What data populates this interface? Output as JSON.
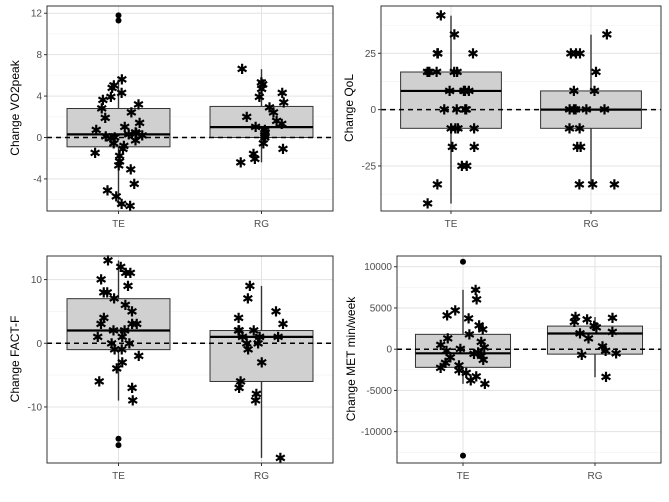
{
  "colors": {
    "panel_background": "#ffffff",
    "grid_major": "#e3e3e3",
    "grid_minor": "#f2f2f2",
    "box_fill": "#d0d0d0",
    "box_stroke": "#333333",
    "point": "#000000",
    "reference_line": "#000000"
  },
  "icons": {
    "point_marker": "asterisk",
    "outlier_marker": "filled-circle"
  },
  "chart_data": [
    {
      "type": "box",
      "ylabel": "Change VO2peak",
      "categories": [
        "TE",
        "RG"
      ],
      "yticks": [
        -4,
        0,
        4,
        8,
        12
      ],
      "ylim": [
        -7.1,
        12.7
      ],
      "reference_line_y": 0,
      "boxes": [
        {
          "category": "TE",
          "whisker_low": -6.6,
          "q1": -0.9,
          "median": 0.3,
          "q3": 2.8,
          "whisker_high": 5.6,
          "outliers": [
            11.3,
            11.8
          ],
          "points": [
            -6.6,
            -6.4,
            -5.7,
            -5.1,
            -4.5,
            -3.1,
            -2.7,
            -2.3,
            -1.8,
            -1.5,
            -1.1,
            -0.8,
            -0.6,
            -0.3,
            -0.1,
            0.0,
            0.1,
            0.2,
            0.3,
            0.4,
            0.5,
            0.7,
            1.0,
            1.4,
            1.9,
            2.4,
            2.8,
            3.2,
            3.6,
            3.9,
            4.3,
            4.8,
            5.0,
            5.6
          ]
        },
        {
          "category": "RG",
          "whisker_low": -2.4,
          "q1": 0.0,
          "median": 1.0,
          "q3": 3.0,
          "whisker_high": 6.6,
          "outliers": [],
          "points": [
            -2.4,
            -2.1,
            -1.6,
            -1.1,
            -0.6,
            0.0,
            0.2,
            0.5,
            0.7,
            1.0,
            1.3,
            1.6,
            2.0,
            2.4,
            2.9,
            3.4,
            3.9,
            4.3,
            4.7,
            5.1,
            5.3,
            6.6
          ]
        }
      ]
    },
    {
      "type": "box",
      "ylabel": "Change QoL",
      "categories": [
        "TE",
        "RG"
      ],
      "yticks": [
        -25,
        0,
        25
      ],
      "ylim": [
        -45,
        46
      ],
      "reference_line_y": 0,
      "boxes": [
        {
          "category": "TE",
          "whisker_low": -41.7,
          "q1": -8.3,
          "median": 8.3,
          "q3": 16.7,
          "whisker_high": 41.7,
          "outliers": [],
          "points": [
            -41.7,
            -33.3,
            -25.0,
            -25.0,
            -16.7,
            -16.7,
            -8.3,
            -8.3,
            -8.3,
            -8.3,
            0.0,
            0.0,
            0.0,
            0.0,
            8.3,
            8.3,
            8.3,
            8.3,
            16.7,
            16.7,
            16.7,
            16.7,
            16.7,
            25.0,
            25.0,
            25.0,
            33.3,
            41.7
          ]
        },
        {
          "category": "RG",
          "whisker_low": -33.3,
          "q1": -8.3,
          "median": 0.0,
          "q3": 8.3,
          "whisker_high": 33.3,
          "outliers": [],
          "points": [
            -33.3,
            -33.3,
            -33.3,
            -16.7,
            -16.7,
            -8.3,
            -8.3,
            0.0,
            0.0,
            0.0,
            0.0,
            0.0,
            8.3,
            8.3,
            16.7,
            25.0,
            25.0,
            25.0,
            33.3
          ]
        }
      ]
    },
    {
      "type": "box",
      "ylabel": "Change FACT-F",
      "categories": [
        "TE",
        "RG"
      ],
      "yticks": [
        -10,
        0,
        10
      ],
      "ylim": [
        -18.8,
        13.7
      ],
      "reference_line_y": 0,
      "boxes": [
        {
          "category": "TE",
          "whisker_low": -9.0,
          "q1": -1.0,
          "median": 2.0,
          "q3": 7.0,
          "whisker_high": 13.0,
          "outliers": [
            -15.0,
            -16.0
          ],
          "points": [
            -9.0,
            -7.0,
            -6.0,
            -4.0,
            -3.0,
            -2.0,
            -1.0,
            -1.0,
            0.0,
            0.0,
            1.0,
            1.0,
            2.0,
            2.0,
            3.0,
            3.0,
            3.0,
            4.0,
            5.0,
            6.0,
            7.0,
            8.0,
            8.0,
            9.0,
            10.0,
            11.0,
            11.0,
            12.0,
            13.0
          ]
        },
        {
          "category": "RG",
          "whisker_low": -18.0,
          "q1": -6.0,
          "median": 1.0,
          "q3": 2.0,
          "whisker_high": 9.0,
          "outliers": [],
          "points": [
            -18.0,
            -9.0,
            -8.0,
            -7.0,
            -6.0,
            -3.0,
            -1.0,
            0.0,
            0.0,
            1.0,
            1.0,
            1.0,
            2.0,
            2.0,
            2.0,
            3.0,
            4.0,
            5.0,
            7.0,
            9.0
          ]
        }
      ]
    },
    {
      "type": "box",
      "ylabel": "Change MET min/week",
      "categories": [
        "TE",
        "RG"
      ],
      "yticks": [
        -10000,
        -5000,
        0,
        5000,
        10000
      ],
      "ylim": [
        -13800,
        11300
      ],
      "reference_line_y": 0,
      "boxes": [
        {
          "category": "TE",
          "whisker_low": -4200,
          "q1": -2200,
          "median": -500,
          "q3": 1800,
          "whisker_high": 7200,
          "outliers": [
            10600,
            -12900
          ],
          "points": [
            -4200,
            -3800,
            -3300,
            -2900,
            -2600,
            -2300,
            -2000,
            -1700,
            -1300,
            -1000,
            -800,
            -600,
            -400,
            -200,
            0,
            200,
            500,
            900,
            1300,
            1800,
            2400,
            2900,
            3700,
            4100,
            4700,
            6000,
            7200
          ]
        },
        {
          "category": "RG",
          "whisker_low": -3400,
          "q1": -600,
          "median": 1900,
          "q3": 2800,
          "whisker_high": 3900,
          "outliers": [],
          "points": [
            -3400,
            -700,
            -500,
            -200,
            300,
            1300,
            1900,
            2100,
            2600,
            2800,
            3300,
            3600,
            3800,
            3900
          ]
        }
      ]
    }
  ]
}
